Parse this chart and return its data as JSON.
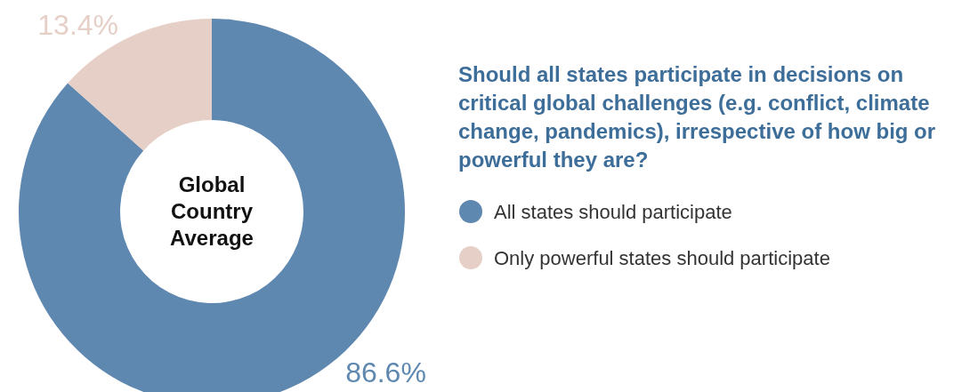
{
  "chart_data": {
    "type": "donut",
    "title": "Should all states participate in decisions on critical global challenges (e.g. conflict, climate change, pandemics), irrespective of how big or powerful they are?",
    "categories": [
      "All states should participate",
      "Only powerful states should participate"
    ],
    "values": [
      86.6,
      13.4
    ],
    "colors": [
      "#5f88b0",
      "#e6cfc6"
    ],
    "value_labels": [
      "86.6%",
      "13.4%"
    ],
    "annotations": [
      "Global Country Average"
    ],
    "legend": "right"
  }
}
